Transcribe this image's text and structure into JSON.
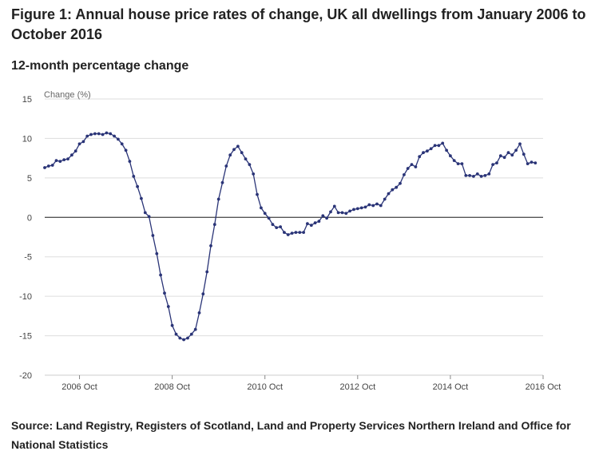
{
  "figure": {
    "title": "Figure 1: Annual house price rates of change, UK all dwellings from January 2006 to October 2016",
    "subtitle": "12-month percentage change",
    "source": "Source: Land Registry, Registers of Scotland, Land and Property Services Northern Ireland and Office for National Statistics"
  },
  "colors": {
    "series": "#2a3477",
    "grid": "#dddddd",
    "zero_line": "#555555",
    "axis": "#cccccc"
  },
  "chart_data": {
    "type": "line",
    "ylabel": "Change (%)",
    "xlabel": "",
    "ylim": [
      -20,
      15
    ],
    "yticks": [
      15,
      10,
      5,
      0,
      -5,
      -10,
      -15,
      -20
    ],
    "x_start": "2006-01",
    "x_end": "2016-10",
    "xticks": [
      {
        "date": "2006-10",
        "label": "2006 Oct"
      },
      {
        "date": "2008-10",
        "label": "2008 Oct"
      },
      {
        "date": "2010-10",
        "label": "2010 Oct"
      },
      {
        "date": "2012-10",
        "label": "2012 Oct"
      },
      {
        "date": "2014-10",
        "label": "2014 Oct"
      },
      {
        "date": "2016-10",
        "label": "2016 Oct"
      }
    ],
    "grid": true,
    "series": [
      {
        "name": "",
        "values": [
          6.3,
          6.5,
          6.6,
          7.2,
          7.1,
          7.3,
          7.4,
          7.9,
          8.4,
          9.3,
          9.6,
          10.3,
          10.5,
          10.6,
          10.6,
          10.5,
          10.7,
          10.6,
          10.3,
          9.9,
          9.3,
          8.5,
          7.1,
          5.2,
          3.9,
          2.4,
          0.6,
          0.1,
          -2.3,
          -4.6,
          -7.3,
          -9.6,
          -11.3,
          -13.7,
          -14.8,
          -15.3,
          -15.5,
          -15.3,
          -14.8,
          -14.2,
          -12.1,
          -9.7,
          -6.9,
          -3.6,
          -0.9,
          2.3,
          4.4,
          6.5,
          7.9,
          8.6,
          9.0,
          8.2,
          7.4,
          6.7,
          5.5,
          2.9,
          1.2,
          0.5,
          -0.1,
          -0.9,
          -1.3,
          -1.2,
          -1.9,
          -2.2,
          -2.0,
          -1.9,
          -1.9,
          -1.9,
          -0.8,
          -1.0,
          -0.7,
          -0.5,
          0.2,
          -0.1,
          0.7,
          1.4,
          0.6,
          0.6,
          0.5,
          0.8,
          1.0,
          1.1,
          1.2,
          1.3,
          1.6,
          1.5,
          1.7,
          1.5,
          2.3,
          3.0,
          3.5,
          3.8,
          4.3,
          5.4,
          6.2,
          6.7,
          6.4,
          7.7,
          8.2,
          8.4,
          8.7,
          9.1,
          9.1,
          9.4,
          8.5,
          7.8,
          7.2,
          6.8,
          6.8,
          5.3,
          5.3,
          5.2,
          5.5,
          5.2,
          5.3,
          5.5,
          6.7,
          6.9,
          7.8,
          7.6,
          8.2,
          7.9,
          8.5,
          9.3,
          8.0,
          6.8,
          7.0,
          6.9
        ]
      }
    ]
  }
}
